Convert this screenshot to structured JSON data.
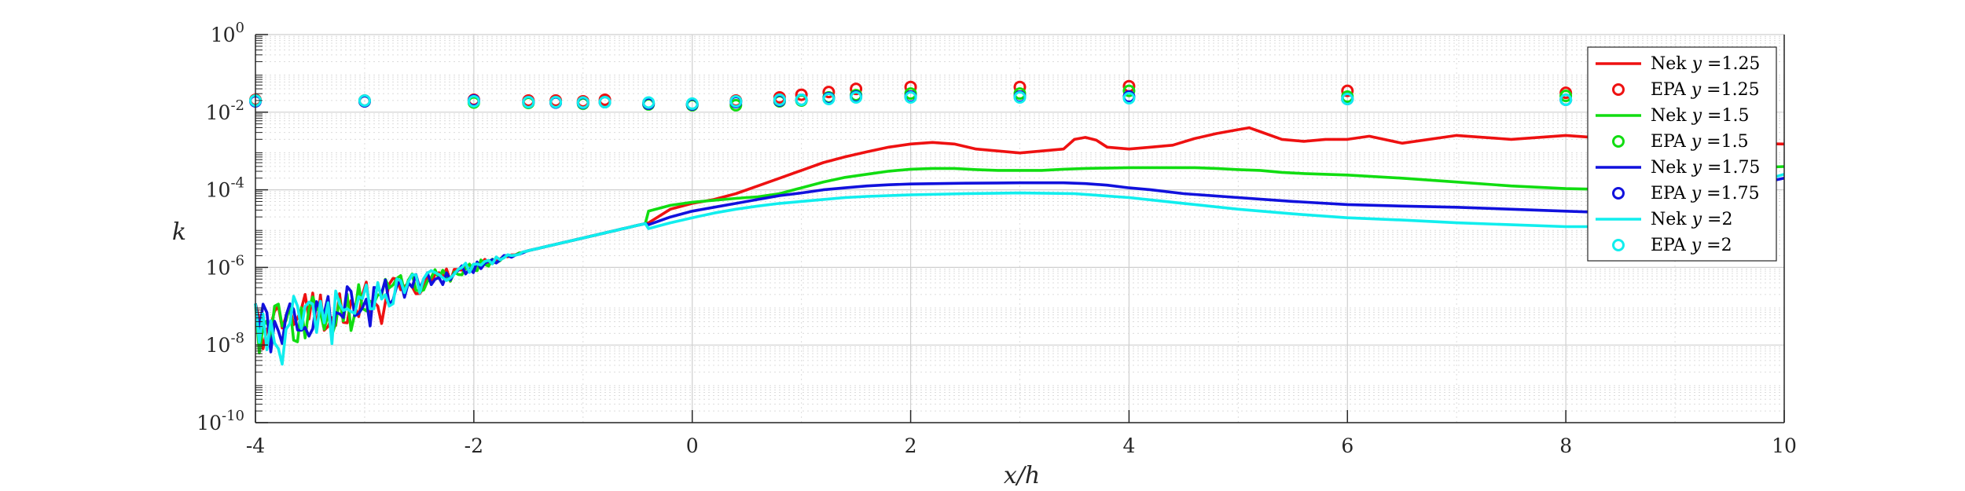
{
  "chart_data": {
    "type": "line",
    "xlabel": "x/h",
    "ylabel": "k",
    "xlim": [
      -4,
      10
    ],
    "ylim_log10": [
      -10,
      0
    ],
    "yscale": "log",
    "grid": true,
    "legend_placement": "top-right",
    "x_ticks": [
      -4,
      -2,
      0,
      2,
      4,
      6,
      8,
      10
    ],
    "x_tick_labels": [
      "-4",
      "-2",
      "0",
      "2",
      "4",
      "6",
      "8",
      "10"
    ],
    "y_tick_exponents": [
      0,
      -2,
      -4,
      -6,
      -8,
      -10
    ],
    "y_tick_labels": [
      {
        "base": "10",
        "exp": "0"
      },
      {
        "base": "10",
        "exp": "-2"
      },
      {
        "base": "10",
        "exp": "-4"
      },
      {
        "base": "10",
        "exp": "-6"
      },
      {
        "base": "10",
        "exp": "-8"
      },
      {
        "base": "10",
        "exp": "-10"
      }
    ],
    "series": [
      {
        "name": "Nek y =1.25",
        "legend_prefix": "Nek",
        "legend_var": "y",
        "legend_value": "=1.25",
        "kind": "line",
        "color": "#ee1111",
        "x": [
          -0.4,
          -0.2,
          0,
          0.2,
          0.4,
          0.6,
          0.8,
          1,
          1.2,
          1.4,
          1.6,
          1.8,
          2,
          2.2,
          2.4,
          2.6,
          2.8,
          3,
          3.2,
          3.4,
          3.5,
          3.6,
          3.7,
          3.8,
          4,
          4.2,
          4.4,
          4.6,
          4.8,
          5,
          5.1,
          5.2,
          5.4,
          5.6,
          5.8,
          6,
          6.2,
          6.5,
          7,
          7.5,
          8,
          8.5,
          9,
          9.5,
          10
        ],
        "log10y": [
          -4.85,
          -4.5,
          -4.35,
          -4.25,
          -4.1,
          -3.9,
          -3.7,
          -3.5,
          -3.3,
          -3.15,
          -3.02,
          -2.9,
          -2.82,
          -2.78,
          -2.82,
          -2.95,
          -3.0,
          -3.05,
          -3.0,
          -2.95,
          -2.7,
          -2.65,
          -2.72,
          -2.9,
          -2.95,
          -2.9,
          -2.85,
          -2.68,
          -2.55,
          -2.45,
          -2.4,
          -2.5,
          -2.7,
          -2.75,
          -2.7,
          -2.7,
          -2.62,
          -2.8,
          -2.6,
          -2.7,
          -2.6,
          -2.7,
          -2.75,
          -2.8,
          -2.82
        ]
      },
      {
        "name": "EPA y =1.25",
        "legend_prefix": "EPA",
        "legend_var": "y",
        "legend_value": "=1.25",
        "kind": "marker",
        "color": "#ee1111",
        "x": [
          -4,
          -3,
          -2,
          -1.5,
          -1.25,
          -1,
          -0.8,
          -0.4,
          0,
          0.4,
          0.8,
          1,
          1.25,
          1.5,
          2,
          3,
          4,
          6,
          8
        ],
        "log10y": [
          -1.68,
          -1.7,
          -1.68,
          -1.7,
          -1.7,
          -1.72,
          -1.68,
          -1.78,
          -1.8,
          -1.7,
          -1.62,
          -1.55,
          -1.48,
          -1.4,
          -1.35,
          -1.35,
          -1.33,
          -1.45,
          -1.5
        ]
      },
      {
        "name": "Nek y =1.5",
        "legend_prefix": "Nek",
        "legend_var": "y",
        "legend_value": "=1.5",
        "kind": "line",
        "color": "#11dd11",
        "x": [
          -0.4,
          -0.2,
          0,
          0.2,
          0.4,
          0.6,
          0.8,
          1,
          1.2,
          1.4,
          1.6,
          1.8,
          2,
          2.2,
          2.4,
          2.6,
          2.8,
          3,
          3.2,
          3.4,
          3.6,
          3.8,
          4,
          4.2,
          4.4,
          4.6,
          4.8,
          5,
          5.2,
          5.4,
          5.6,
          6,
          6.5,
          7,
          7.5,
          8,
          8.5,
          9,
          9.5,
          10
        ],
        "log10y": [
          -4.55,
          -4.4,
          -4.32,
          -4.27,
          -4.22,
          -4.18,
          -4.1,
          -3.95,
          -3.8,
          -3.68,
          -3.6,
          -3.52,
          -3.47,
          -3.45,
          -3.45,
          -3.48,
          -3.5,
          -3.5,
          -3.5,
          -3.47,
          -3.45,
          -3.44,
          -3.43,
          -3.43,
          -3.43,
          -3.43,
          -3.45,
          -3.48,
          -3.5,
          -3.55,
          -3.58,
          -3.62,
          -3.7,
          -3.8,
          -3.9,
          -3.97,
          -4.0,
          -3.8,
          -3.45,
          -3.4
        ]
      },
      {
        "name": "EPA y =1.5",
        "legend_prefix": "EPA",
        "legend_var": "y",
        "legend_value": "=1.5",
        "kind": "marker",
        "color": "#11dd11",
        "x": [
          -4,
          -3,
          -2,
          -1.5,
          -1.25,
          -1,
          -0.8,
          -0.4,
          0,
          0.4,
          0.8,
          1,
          1.25,
          1.5,
          2,
          3,
          4,
          6,
          8
        ],
        "log10y": [
          -1.7,
          -1.72,
          -1.75,
          -1.76,
          -1.75,
          -1.78,
          -1.74,
          -1.8,
          -1.82,
          -1.82,
          -1.72,
          -1.7,
          -1.62,
          -1.56,
          -1.52,
          -1.52,
          -1.45,
          -1.6,
          -1.58
        ]
      },
      {
        "name": "Nek y =1.75",
        "legend_prefix": "Nek",
        "legend_var": "y",
        "legend_value": "=1.75",
        "kind": "line",
        "color": "#1111dd",
        "x": [
          -0.4,
          -0.2,
          0,
          0.2,
          0.4,
          0.6,
          0.8,
          1,
          1.2,
          1.4,
          1.6,
          1.8,
          2,
          2.5,
          3,
          3.2,
          3.4,
          3.6,
          3.8,
          4,
          4.2,
          4.5,
          5,
          5.5,
          6,
          6.5,
          7,
          7.5,
          8,
          8.5,
          9,
          9.5,
          10
        ],
        "log10y": [
          -4.9,
          -4.7,
          -4.55,
          -4.45,
          -4.35,
          -4.25,
          -4.15,
          -4.08,
          -4.0,
          -3.95,
          -3.9,
          -3.87,
          -3.85,
          -3.83,
          -3.82,
          -3.82,
          -3.82,
          -3.84,
          -3.88,
          -3.95,
          -4.0,
          -4.1,
          -4.2,
          -4.3,
          -4.38,
          -4.42,
          -4.45,
          -4.5,
          -4.55,
          -4.6,
          -4.5,
          -4.0,
          -3.7
        ]
      },
      {
        "name": "EPA y =1.75",
        "legend_prefix": "EPA",
        "legend_var": "y",
        "legend_value": "=1.75",
        "kind": "marker",
        "color": "#1111dd",
        "x": [
          -4,
          -3,
          -2,
          -1.5,
          -1.25,
          -1,
          -0.8,
          -0.4,
          0,
          0.4,
          0.8,
          1,
          1.25,
          1.5,
          2,
          3,
          4,
          6,
          8
        ],
        "log10y": [
          -1.72,
          -1.72,
          -1.7,
          -1.74,
          -1.75,
          -1.76,
          -1.74,
          -1.78,
          -1.8,
          -1.74,
          -1.7,
          -1.68,
          -1.64,
          -1.6,
          -1.6,
          -1.6,
          -1.6,
          -1.66,
          -1.68
        ]
      },
      {
        "name": "Nek y =2",
        "legend_prefix": "Nek",
        "legend_var": "y",
        "legend_value": "=2",
        "kind": "line",
        "color": "#11eeee",
        "x": [
          -0.4,
          -0.2,
          0,
          0.2,
          0.4,
          0.6,
          0.8,
          1,
          1.2,
          1.4,
          1.6,
          1.8,
          2,
          2.5,
          3,
          3.5,
          4,
          4.5,
          5,
          5.5,
          6,
          6.5,
          7,
          7.5,
          8,
          8.5,
          9,
          9.5,
          10
        ],
        "log10y": [
          -5.0,
          -4.85,
          -4.72,
          -4.6,
          -4.5,
          -4.42,
          -4.35,
          -4.3,
          -4.25,
          -4.2,
          -4.17,
          -4.15,
          -4.13,
          -4.1,
          -4.08,
          -4.1,
          -4.2,
          -4.35,
          -4.5,
          -4.62,
          -4.72,
          -4.78,
          -4.85,
          -4.9,
          -4.95,
          -4.95,
          -4.8,
          -4.0,
          -3.6
        ]
      },
      {
        "name": "EPA y =2",
        "legend_prefix": "EPA",
        "legend_var": "y",
        "legend_value": "=2",
        "kind": "marker",
        "color": "#11eeee",
        "x": [
          -4,
          -3,
          -2,
          -1.5,
          -1.25,
          -1,
          -0.8,
          -0.4,
          0,
          0.4,
          0.8,
          1,
          1.25,
          1.5,
          2,
          3,
          4,
          6,
          8
        ],
        "log10y": [
          -1.7,
          -1.7,
          -1.72,
          -1.74,
          -1.74,
          -1.75,
          -1.74,
          -1.75,
          -1.78,
          -1.72,
          -1.68,
          -1.68,
          -1.66,
          -1.62,
          -1.62,
          -1.62,
          -1.64,
          -1.66,
          -1.68
        ]
      }
    ]
  }
}
